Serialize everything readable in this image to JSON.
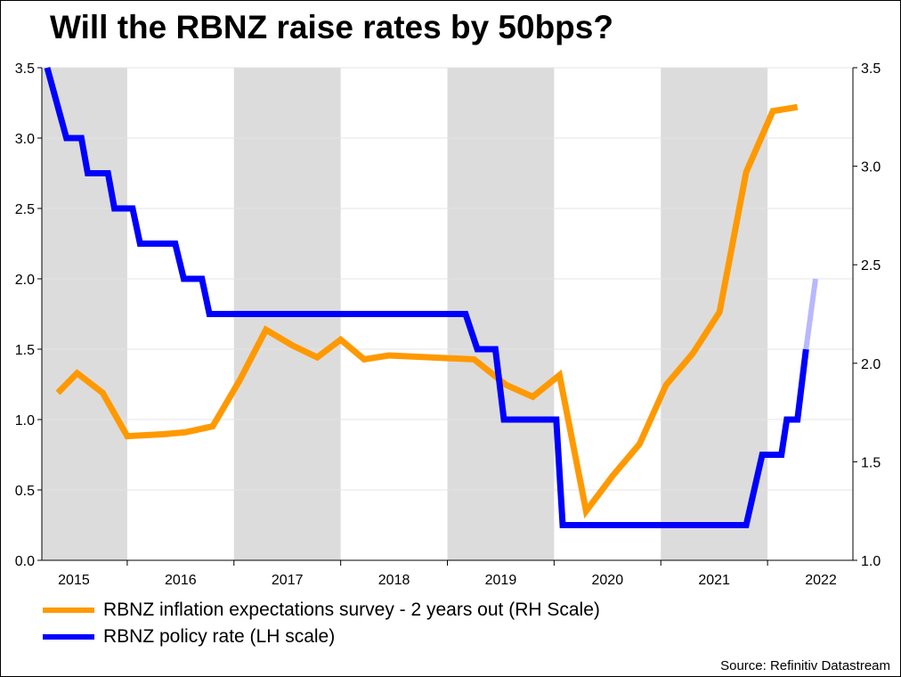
{
  "colors": {
    "inflation": "#ff9900",
    "policy": "#0000ff",
    "policy_projection": "#b8b8ff",
    "shade": "#dcdcdc"
  },
  "chart_data": {
    "type": "line",
    "title": "Will the RBNZ raise rates by 50bps?",
    "x_ticks": [
      "2015",
      "2016",
      "2017",
      "2018",
      "2019",
      "2020",
      "2021",
      "2022"
    ],
    "x_range": [
      2014.7,
      2022.3
    ],
    "shaded_years": [
      "2015",
      "2017",
      "2019",
      "2021"
    ],
    "y_left": {
      "ticks": [
        "0.0",
        "0.5",
        "1.0",
        "1.5",
        "2.0",
        "2.5",
        "3.0",
        "3.5"
      ],
      "range": [
        0,
        3.5
      ]
    },
    "y_right": {
      "ticks": [
        "1.0",
        "1.5",
        "2.0",
        "2.5",
        "3.0",
        "3.5"
      ],
      "range": [
        1.0,
        3.5
      ]
    },
    "series": [
      {
        "name": "RBNZ inflation expectations survey - 2 years out (RH Scale)",
        "axis": "right",
        "points": [
          [
            2014.85,
            1.85
          ],
          [
            2015.03,
            1.95
          ],
          [
            2015.27,
            1.85
          ],
          [
            2015.5,
            1.63
          ],
          [
            2015.85,
            1.64
          ],
          [
            2016.05,
            1.65
          ],
          [
            2016.3,
            1.68
          ],
          [
            2016.55,
            1.91
          ],
          [
            2016.8,
            2.17
          ],
          [
            2017.05,
            2.09
          ],
          [
            2017.28,
            2.03
          ],
          [
            2017.5,
            2.12
          ],
          [
            2017.72,
            2.02
          ],
          [
            2017.95,
            2.04
          ],
          [
            2018.75,
            2.02
          ],
          [
            2019.05,
            1.89
          ],
          [
            2019.3,
            1.83
          ],
          [
            2019.55,
            1.94
          ],
          [
            2019.8,
            1.25
          ],
          [
            2020.05,
            1.43
          ],
          [
            2020.3,
            1.59
          ],
          [
            2020.55,
            1.89
          ],
          [
            2020.8,
            2.05
          ],
          [
            2021.05,
            2.26
          ],
          [
            2021.3,
            2.97
          ],
          [
            2021.55,
            3.28
          ],
          [
            2021.78,
            3.3
          ]
        ]
      },
      {
        "name": "RBNZ policy rate (LH scale)",
        "axis": "left",
        "points": [
          [
            2014.75,
            3.5
          ],
          [
            2014.93,
            3.0
          ],
          [
            2015.07,
            3.0
          ],
          [
            2015.13,
            2.75
          ],
          [
            2015.32,
            2.75
          ],
          [
            2015.38,
            2.5
          ],
          [
            2015.55,
            2.5
          ],
          [
            2015.62,
            2.25
          ],
          [
            2015.95,
            2.25
          ],
          [
            2016.03,
            2.0
          ],
          [
            2016.2,
            2.0
          ],
          [
            2016.27,
            1.75
          ],
          [
            2018.67,
            1.75
          ],
          [
            2018.78,
            1.5
          ],
          [
            2018.95,
            1.5
          ],
          [
            2019.03,
            1.0
          ],
          [
            2019.52,
            1.0
          ],
          [
            2019.58,
            0.25
          ],
          [
            2021.3,
            0.25
          ],
          [
            2021.45,
            0.75
          ],
          [
            2021.63,
            0.75
          ],
          [
            2021.68,
            1.0
          ],
          [
            2021.78,
            1.0
          ],
          [
            2021.86,
            1.5
          ]
        ],
        "projection": [
          [
            2021.86,
            1.5
          ],
          [
            2021.95,
            2.0
          ]
        ]
      }
    ],
    "source": "Source: Refinitiv Datastream"
  }
}
